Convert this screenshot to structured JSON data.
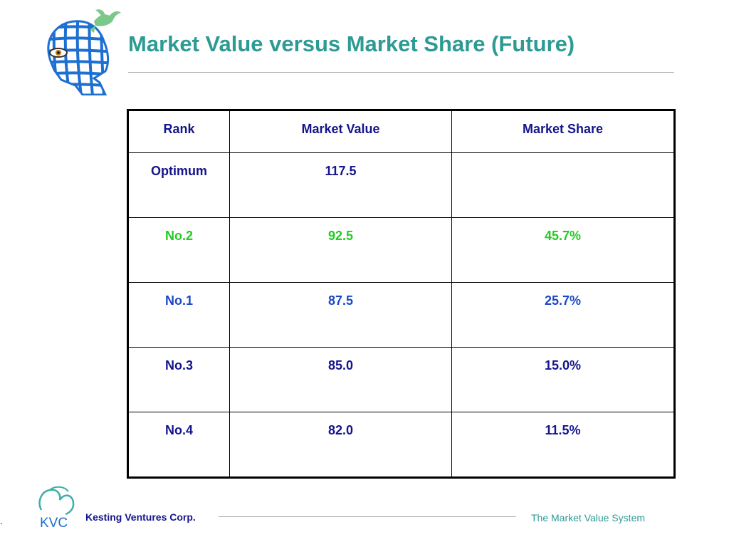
{
  "slide": {
    "title": "Market Value versus Market Share (Future)"
  },
  "table": {
    "headers": [
      "Rank",
      "Market Value",
      "Market Share"
    ],
    "rows": [
      {
        "rank": "Optimum",
        "market_value": "117.5",
        "market_share": "",
        "color": "#14148c"
      },
      {
        "rank": "No.2",
        "market_value": "92.5",
        "market_share": "45.7%",
        "color": "#22cc22"
      },
      {
        "rank": "No.1",
        "market_value": "87.5",
        "market_share": "25.7%",
        "color": "#1a49c4"
      },
      {
        "rank": "No.3",
        "market_value": "85.0",
        "market_share": "15.0%",
        "color": "#14148c"
      },
      {
        "rank": "No.4",
        "market_value": "82.0",
        "market_share": "11.5%",
        "color": "#14148c"
      }
    ]
  },
  "footer": {
    "marker": ".",
    "logo_text": "KVC",
    "company": "Kesting Ventures Corp.",
    "tagline": "The Market Value System"
  },
  "colors": {
    "title": "#2e9a94",
    "header_text": "#14148c",
    "footer_company": "#14148c",
    "footer_tagline": "#2e9a94",
    "logo_globe": "#1d6fd1"
  },
  "icons": [
    "globe-head-logo-icon",
    "kvc-logo-icon"
  ]
}
